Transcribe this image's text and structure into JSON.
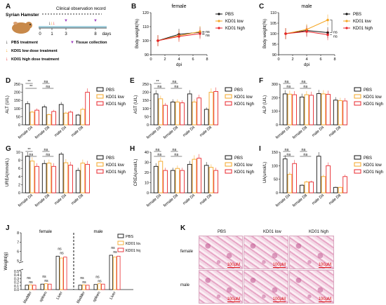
{
  "colors": {
    "pbs": "#111111",
    "low": "#f5a623",
    "high": "#e8252b",
    "axis": "#222222"
  },
  "panels": {
    "A": {
      "label": "A",
      "title": "Syrian Hamster",
      "header": "Clinical observation record",
      "ticks": [
        "0",
        "1",
        "3",
        "8"
      ],
      "days": "days",
      "legend": [
        {
          "mark": "↓",
          "text": "PBS treatment",
          "color": "#111111"
        },
        {
          "mark": "↓",
          "text": "KD01 low dose treatment",
          "color": "#f5a623"
        },
        {
          "mark": "↓",
          "text": "KD01 high dose treatment",
          "color": "#e8252b"
        }
      ],
      "tissue": "Tissue collection",
      "tissue_mark": "▼"
    },
    "B": {
      "label": "B",
      "title": "female",
      "ylabel": "Body weight(%)",
      "xlabel": "dpi",
      "ns": [
        "ns",
        "ns"
      ]
    },
    "C": {
      "label": "C",
      "title": "male",
      "ylabel": "Body weight(%)",
      "xlabel": "dpi",
      "ns": [
        "ns",
        "ns"
      ]
    },
    "D": {
      "label": "D",
      "ylabel": "ALT (U/L)",
      "sig": [
        "**",
        "**",
        "ns",
        "ns"
      ]
    },
    "E": {
      "label": "E",
      "ylabel": "AST (U/L)",
      "sig": [
        "**",
        "ns",
        "ns",
        "ns"
      ]
    },
    "F": {
      "label": "F",
      "ylabel": "ALP (U/L)",
      "sig": [
        "ns",
        "ns",
        "ns",
        "ns"
      ]
    },
    "G": {
      "label": "G",
      "ylabel": "UREA(mmol/L)",
      "sig": [
        "**",
        "ns",
        "ns",
        "ns"
      ]
    },
    "H": {
      "label": "H",
      "ylabel": "CREA(umol/L)",
      "sig": [
        "ns",
        "ns",
        "ns",
        "ns"
      ]
    },
    "I": {
      "label": "I",
      "ylabel": "UA(umol/L)",
      "sig": [
        "ns",
        "ns",
        "ns",
        "ns"
      ]
    },
    "J": {
      "label": "J",
      "ylabel": "Weight(g)",
      "female": "female",
      "male": "male",
      "ns": [
        "ns",
        "ns",
        "ns",
        "ns",
        "ns",
        "ns",
        "ns",
        "ns",
        "ns",
        "ns",
        "ns",
        "ns"
      ]
    },
    "K": {
      "label": "K",
      "cols": [
        "PBS",
        "KD01 low",
        "KD01 high"
      ],
      "rows": [
        "female",
        "male"
      ],
      "scale": "100μM"
    }
  },
  "legend_labels": [
    "PBS",
    "KD01 low",
    "KD01 high"
  ],
  "chart_data": [
    {
      "id": "B",
      "type": "line",
      "title": "female",
      "xlabel": "dpi",
      "ylabel": "Body weight(%)",
      "x": [
        1,
        4,
        7
      ],
      "ylim": [
        90,
        120
      ],
      "xlim": [
        0,
        8
      ],
      "yticks": [
        90,
        100,
        110,
        120
      ],
      "xticks": [
        0,
        2,
        4,
        6,
        8
      ],
      "series": [
        {
          "name": "PBS",
          "values": [
            100,
            104.5,
            106
          ]
        },
        {
          "name": "KD01 low",
          "values": [
            100,
            103.5,
            106.5
          ]
        },
        {
          "name": "KD01 high",
          "values": [
            100,
            103,
            105
          ]
        }
      ]
    },
    {
      "id": "C",
      "type": "line",
      "title": "male",
      "xlabel": "dpi",
      "ylabel": "Body weight(%)",
      "x": [
        1,
        4,
        7
      ],
      "ylim": [
        90,
        110
      ],
      "xlim": [
        0,
        8
      ],
      "yticks": [
        90,
        95,
        100,
        105,
        110
      ],
      "xticks": [
        0,
        2,
        4,
        6,
        8
      ],
      "series": [
        {
          "name": "PBS",
          "values": [
            100,
            101.5,
            100.5
          ]
        },
        {
          "name": "KD01 low",
          "values": [
            100,
            102,
            106.5
          ]
        },
        {
          "name": "KD01 high",
          "values": [
            100,
            101,
            99.5
          ]
        }
      ]
    },
    {
      "id": "D",
      "type": "bar",
      "ylabel": "ALT (U/L)",
      "categories": [
        "female D4",
        "female D8",
        "male D4",
        "male D8"
      ],
      "ylim": [
        0,
        250
      ],
      "yticks": [
        0,
        50,
        100,
        150,
        200,
        250
      ],
      "series": [
        {
          "name": "PBS",
          "values": [
            130,
            110,
            125,
            60
          ]
        },
        {
          "name": "KD01 low",
          "values": [
            78,
            62,
            72,
            95
          ]
        },
        {
          "name": "KD01 high",
          "values": [
            90,
            82,
            78,
            200
          ]
        }
      ]
    },
    {
      "id": "E",
      "type": "bar",
      "ylabel": "AST (U/L)",
      "categories": [
        "female D4",
        "female D8",
        "male D4",
        "male D8"
      ],
      "ylim": [
        0,
        250
      ],
      "yticks": [
        0,
        50,
        100,
        150,
        200,
        250
      ],
      "series": [
        {
          "name": "PBS",
          "values": [
            190,
            140,
            190,
            95
          ]
        },
        {
          "name": "KD01 low",
          "values": [
            160,
            140,
            140,
            200
          ]
        },
        {
          "name": "KD01 high",
          "values": [
            120,
            135,
            165,
            205
          ]
        }
      ]
    },
    {
      "id": "F",
      "type": "bar",
      "ylabel": "ALP (U/L)",
      "categories": [
        "female D4",
        "female D8",
        "male D4",
        "male D8"
      ],
      "ylim": [
        0,
        300
      ],
      "yticks": [
        0,
        100,
        200,
        300
      ],
      "series": [
        {
          "name": "PBS",
          "values": [
            228,
            205,
            230,
            182
          ]
        },
        {
          "name": "KD01 low",
          "values": [
            226,
            222,
            228,
            178
          ]
        },
        {
          "name": "KD01 high",
          "values": [
            222,
            218,
            225,
            176
          ]
        }
      ]
    },
    {
      "id": "G",
      "type": "bar",
      "ylabel": "UREA(mmol/L)",
      "categories": [
        "female D4",
        "female D8",
        "male D4",
        "male D8"
      ],
      "ylim": [
        0,
        10
      ],
      "yticks": [
        0,
        2,
        4,
        6,
        8,
        10
      ],
      "series": [
        {
          "name": "PBS",
          "values": [
            9,
            7.2,
            9.5,
            5.5
          ]
        },
        {
          "name": "KD01 low",
          "values": [
            7.8,
            7.3,
            7.4,
            7.3
          ]
        },
        {
          "name": "KD01 high",
          "values": [
            6.5,
            6.5,
            6.8,
            7
          ]
        }
      ]
    },
    {
      "id": "H",
      "type": "bar",
      "ylabel": "CREA(umol/L)",
      "categories": [
        "female D4",
        "female D8",
        "male D4",
        "male D8"
      ],
      "ylim": [
        0,
        40
      ],
      "yticks": [
        0,
        10,
        20,
        30,
        40
      ],
      "series": [
        {
          "name": "PBS",
          "values": [
            26,
            22,
            28,
            27
          ]
        },
        {
          "name": "KD01 low",
          "values": [
            31,
            24,
            33,
            25
          ]
        },
        {
          "name": "KD01 high",
          "values": [
            22,
            22,
            34,
            22
          ]
        }
      ]
    },
    {
      "id": "I",
      "type": "bar",
      "ylabel": "UA(umol/L)",
      "categories": [
        "female D4",
        "female D8",
        "male D4",
        "male D8"
      ],
      "ylim": [
        0,
        150
      ],
      "yticks": [
        0,
        50,
        100,
        150
      ],
      "series": [
        {
          "name": "PBS",
          "values": [
            125,
            28,
            135,
            20
          ]
        },
        {
          "name": "KD01 low",
          "values": [
            68,
            40,
            60,
            20
          ]
        },
        {
          "name": "KD01 high",
          "values": [
            108,
            40,
            100,
            60
          ]
        }
      ]
    },
    {
      "id": "J",
      "type": "bar",
      "ylabel": "Weight(g)",
      "categories": [
        "bladder",
        "spleen",
        "Liver",
        "bladder",
        "spleen",
        "Liver"
      ],
      "yticks": [
        "0.0",
        "0.1",
        "0.2",
        "0.3",
        "0.4",
        "0.5",
        "5",
        "6",
        "7",
        "8"
      ],
      "series": [
        {
          "name": "PBS",
          "values": [
            0.12,
            0.15,
            5.5,
            0.12,
            0.14,
            5.6
          ]
        },
        {
          "name": "KD01 low",
          "values": [
            0.13,
            0.16,
            5.3,
            0.13,
            0.16,
            5.4
          ]
        },
        {
          "name": "KD01 high",
          "values": [
            0.12,
            0.15,
            5.4,
            0.12,
            0.15,
            5.5
          ]
        }
      ]
    }
  ]
}
